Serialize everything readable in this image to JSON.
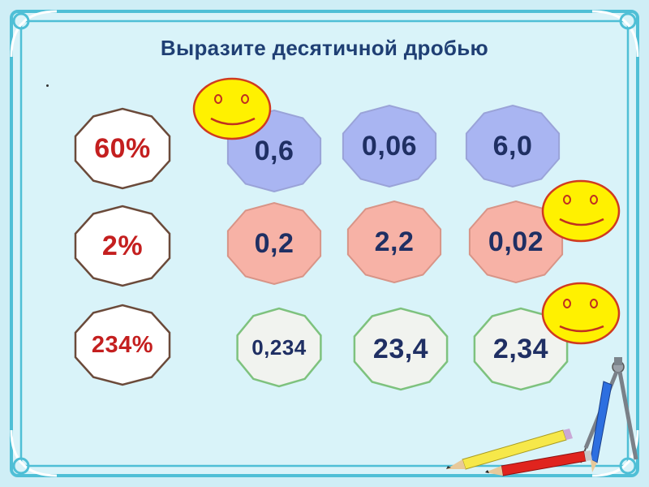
{
  "slide": {
    "title": "Выразите десятичной дробью"
  },
  "colors": {
    "background": "#cfeef6",
    "frame": "#4fbfd6",
    "percent_fill": "#ffffff",
    "percent_stroke": "#6b4a3a",
    "percent_text": "#c41f1f",
    "blue_fill": "#a9b5f2",
    "pink_fill": "#f7b2a6",
    "green_fill": "#f1f3ef",
    "answer_text": "#1f2f63",
    "smiley": "#fff100"
  },
  "rows": [
    {
      "percent": "60%",
      "options": [
        "0,6",
        "0,06",
        "6,0"
      ]
    },
    {
      "percent": "2%",
      "options": [
        "0,2",
        "2,2",
        "0,02"
      ]
    },
    {
      "percent": "234%",
      "options": [
        "0,234",
        "23,4",
        "2,34"
      ]
    }
  ],
  "icons": {
    "smiley": "smiley-face-icon",
    "compass": "compass-icon",
    "pencil": "pencil-icon"
  }
}
